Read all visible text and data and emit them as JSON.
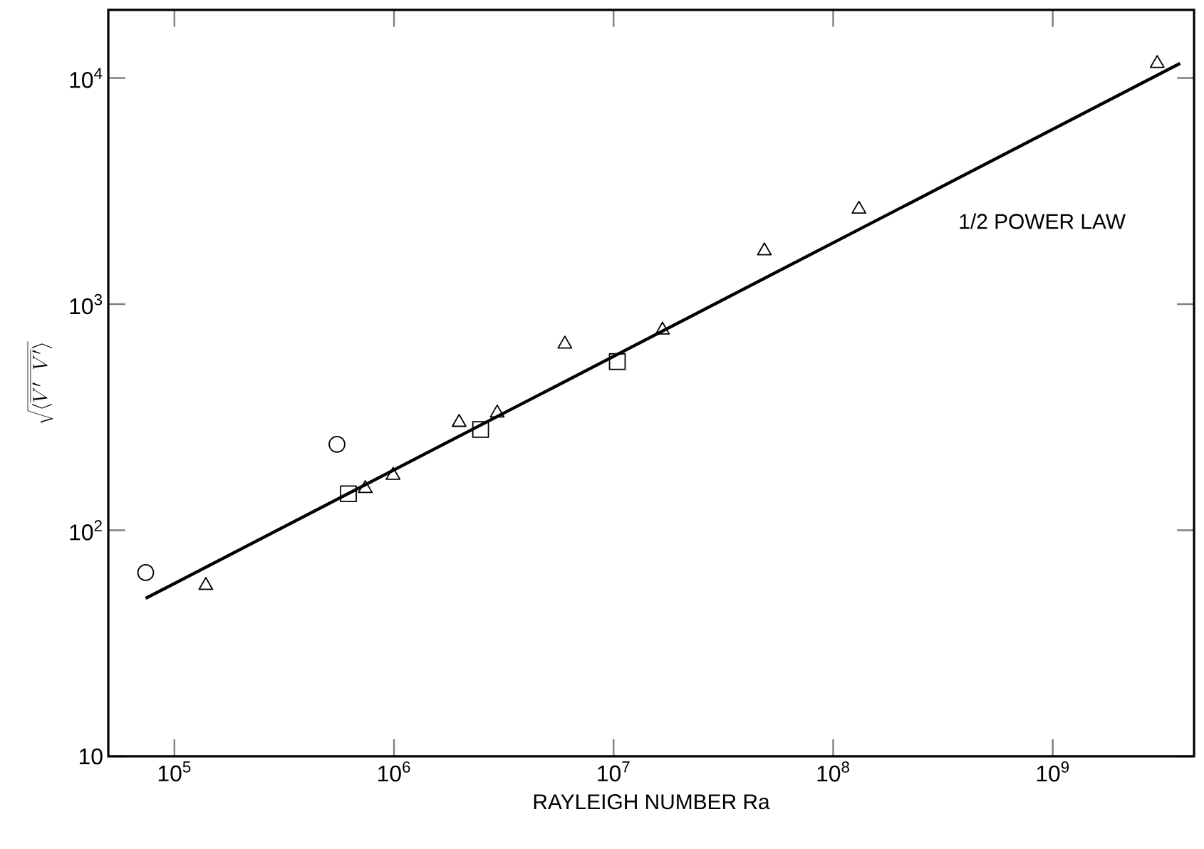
{
  "chart_data": {
    "type": "scatter",
    "xlabel": "RAYLEIGH NUMBER  Ra",
    "ylabel": "\\sqrt{\\langle\\overline{V'\\;\\;V'}\\rangle}",
    "log": "xy",
    "xlim": [
      50000,
      4400000000
    ],
    "ylim": [
      10,
      20000
    ],
    "xticks": [
      {
        "value": 100000,
        "label": "10$^{5}$"
      },
      {
        "value": 1000000,
        "label": "10$^{6}$"
      },
      {
        "value": 10000000,
        "label": "10$^{7}$"
      },
      {
        "value": 100000000,
        "label": "10$^{8}$"
      },
      {
        "value": 1000000000,
        "label": "10$^{9}$"
      }
    ],
    "yticks": [
      10,
      {
        "value": 100,
        "label": "10$^{2}$"
      },
      {
        "value": 1000,
        "label": "10$^{3}$"
      },
      {
        "value": 10000,
        "label": "10$^{4}$"
      }
    ],
    "annotations": [
      "1/2 POWER LAW"
    ],
    "series": [
      {
        "type": "scatter",
        "marker": "circle",
        "color": "#000000",
        "x": [
          74000,
          550000
        ],
        "values": [
          65,
          240
        ]
      },
      {
        "type": "scatter",
        "marker": "square",
        "color": "#000000",
        "x": [
          620000,
          2480000,
          10400000
        ],
        "values": [
          145,
          279,
          557
        ]
      },
      {
        "type": "scatter",
        "marker": "triangle",
        "color": "#000000",
        "x": [
          139000,
          740000,
          990000,
          1980000,
          2950000,
          6000000,
          16700000,
          48600000,
          131000000,
          2990000000
        ],
        "values": [
          57,
          153,
          175,
          300,
          330,
          666,
          768,
          1720,
          2630,
          11600
        ]
      },
      {
        "type": "line",
        "marker": "none",
        "color": "#000000",
        "x": [
          74000,
          3800000000
        ],
        "values": [
          50,
          11600
        ]
      }
    ]
  }
}
